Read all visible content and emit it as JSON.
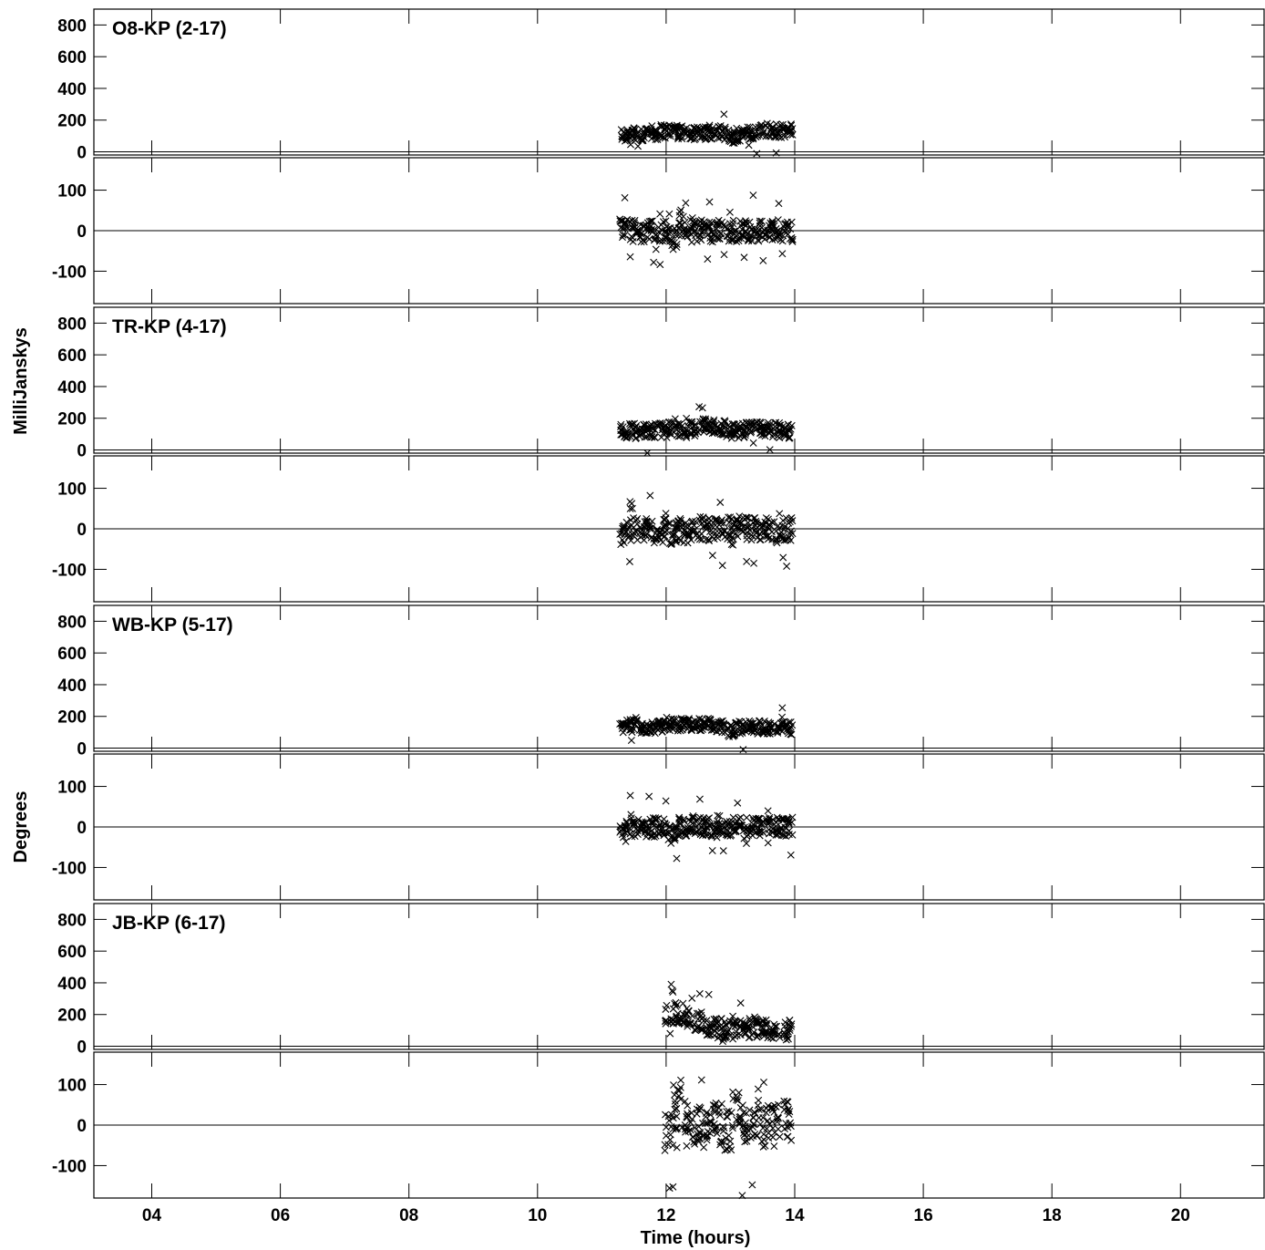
{
  "chart_data": {
    "type": "scatter",
    "xlabel": "Time (hours)",
    "x_tick_labels": [
      "04",
      "06",
      "08",
      "10",
      "12",
      "14",
      "16",
      "18",
      "20"
    ],
    "x_ticks": [
      4,
      6,
      8,
      10,
      12,
      14,
      16,
      18,
      20
    ],
    "xlim": [
      3.1,
      21.3
    ],
    "amplitude_axis_label": "MilliJanskys",
    "phase_axis_label": "Degrees",
    "amp_ticks": [
      0,
      200,
      400,
      600,
      800
    ],
    "amp_tick_labels": [
      "0",
      "200",
      "400",
      "600",
      "800"
    ],
    "amp_ylim": [
      -20,
      900
    ],
    "phase_ticks": [
      -100,
      0,
      100
    ],
    "phase_tick_labels": [
      "-100",
      "0",
      "100"
    ],
    "phase_ylim": [
      -180,
      180
    ],
    "marker": "x",
    "grid": false,
    "baselines": [
      {
        "label": "O8-KP (2-17)",
        "amplitude": {
          "x": [
            11.35,
            11.5,
            11.65,
            11.8,
            11.95,
            12.1,
            12.25,
            12.4,
            12.55,
            12.7,
            12.85,
            13.0,
            13.15,
            13.3,
            13.45,
            13.6,
            13.75,
            13.9
          ],
          "y": [
            105,
            110,
            115,
            120,
            130,
            140,
            125,
            120,
            115,
            125,
            120,
            95,
            110,
            125,
            135,
            140,
            130,
            135
          ],
          "spread": 75
        },
        "phase": {
          "x": [
            11.35,
            11.5,
            11.65,
            11.8,
            11.95,
            12.1,
            12.25,
            12.4,
            12.55,
            12.7,
            12.85,
            13.0,
            13.15,
            13.3,
            13.45,
            13.6,
            13.75,
            13.9
          ],
          "y": [
            5,
            0,
            -5,
            0,
            0,
            -20,
            10,
            5,
            0,
            -5,
            0,
            0,
            0,
            0,
            0,
            0,
            0,
            0
          ],
          "spread": 45
        }
      },
      {
        "label": "TR-KP (4-17)",
        "amplitude": {
          "x": [
            11.35,
            11.5,
            11.65,
            11.8,
            11.95,
            12.1,
            12.25,
            12.4,
            12.55,
            12.7,
            12.85,
            13.0,
            13.15,
            13.3,
            13.45,
            13.6,
            13.75,
            13.9
          ],
          "y": [
            120,
            120,
            115,
            120,
            125,
            130,
            125,
            130,
            150,
            150,
            140,
            120,
            120,
            130,
            130,
            130,
            125,
            120
          ],
          "spread": 80
        },
        "phase": {
          "x": [
            11.35,
            11.5,
            11.65,
            11.8,
            11.95,
            12.1,
            12.25,
            12.4,
            12.55,
            12.7,
            12.85,
            13.0,
            13.15,
            13.3,
            13.45,
            13.6,
            13.75,
            13.9
          ],
          "y": [
            -10,
            -5,
            0,
            -5,
            0,
            -10,
            0,
            -10,
            0,
            0,
            0,
            0,
            0,
            0,
            0,
            0,
            -5,
            0
          ],
          "spread": 50
        }
      },
      {
        "label": "WB-KP (5-17)",
        "amplitude": {
          "x": [
            11.35,
            11.5,
            11.65,
            11.8,
            11.95,
            12.1,
            12.25,
            12.4,
            12.55,
            12.7,
            12.85,
            13.0,
            13.15,
            13.3,
            13.45,
            13.6,
            13.75,
            13.9
          ],
          "y": [
            140,
            140,
            135,
            130,
            140,
            145,
            150,
            150,
            145,
            150,
            140,
            110,
            130,
            135,
            130,
            130,
            130,
            125
          ],
          "spread": 70
        },
        "phase": {
          "x": [
            11.35,
            11.5,
            11.65,
            11.8,
            11.95,
            12.1,
            12.25,
            12.4,
            12.55,
            12.7,
            12.85,
            13.0,
            13.15,
            13.3,
            13.45,
            13.6,
            13.75,
            13.9
          ],
          "y": [
            0,
            0,
            -5,
            0,
            0,
            -20,
            0,
            0,
            0,
            0,
            5,
            0,
            0,
            0,
            0,
            0,
            0,
            0
          ],
          "spread": 40
        }
      },
      {
        "label": "JB-KP (6-17)",
        "amplitude": {
          "x": [
            12.05,
            12.2,
            12.35,
            12.5,
            12.65,
            12.8,
            12.95,
            13.1,
            13.25,
            13.4,
            13.55,
            13.7,
            13.9
          ],
          "y": [
            200,
            210,
            190,
            150,
            120,
            110,
            95,
            100,
            110,
            120,
            110,
            110,
            105
          ],
          "spread": 110
        },
        "phase": {
          "x": [
            12.05,
            12.2,
            12.35,
            12.5,
            12.65,
            12.8,
            12.95,
            13.1,
            13.25,
            13.4,
            13.55,
            13.7,
            13.9
          ],
          "y": [
            -20,
            40,
            20,
            5,
            -5,
            0,
            -10,
            30,
            0,
            10,
            0,
            0,
            10
          ],
          "spread": 90
        }
      }
    ]
  }
}
